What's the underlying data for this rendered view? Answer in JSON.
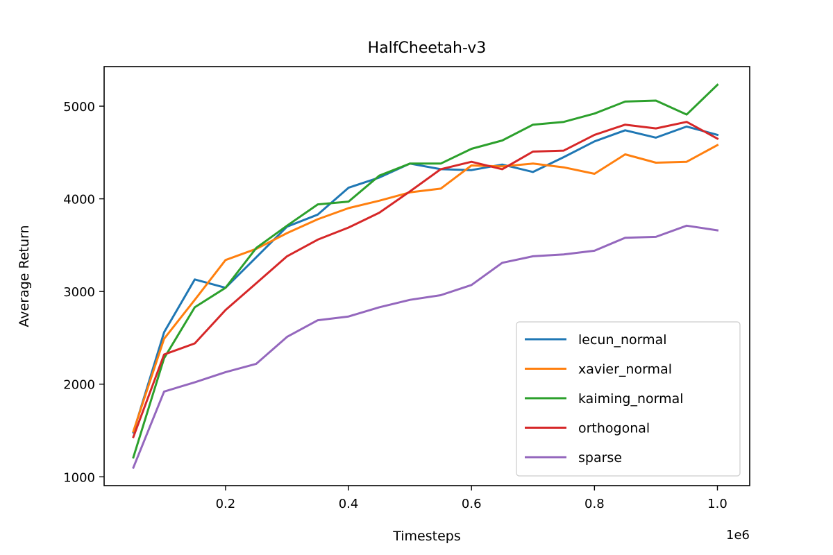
{
  "chart_data": {
    "type": "line",
    "title": "HalfCheetah-v3",
    "xlabel": "Timesteps",
    "ylabel": "Average Return",
    "x_offset_label": "1e6",
    "xlim": [
      0.0025,
      1.0525
    ],
    "ylim": [
      905,
      5427
    ],
    "xticks": [
      0.2,
      0.4,
      0.6,
      0.8,
      1.0
    ],
    "xtick_labels": [
      "0.2",
      "0.4",
      "0.6",
      "0.8",
      "1.0"
    ],
    "yticks": [
      1000,
      2000,
      3000,
      4000,
      5000
    ],
    "ytick_labels": [
      "1000",
      "2000",
      "3000",
      "4000",
      "5000"
    ],
    "grid": false,
    "legend_position": "lower-right",
    "x": [
      0.05,
      0.1,
      0.15,
      0.2,
      0.25,
      0.3,
      0.35,
      0.4,
      0.45,
      0.5,
      0.55,
      0.6,
      0.65,
      0.7,
      0.75,
      0.8,
      0.85,
      0.9,
      0.95,
      1.0
    ],
    "series": [
      {
        "name": "lecun_normal",
        "color": "#1f77b4",
        "values": [
          1480,
          2560,
          3130,
          3040,
          3370,
          3700,
          3830,
          4120,
          4230,
          4380,
          4320,
          4310,
          4370,
          4290,
          4450,
          4620,
          4740,
          4660,
          4780,
          4690
        ]
      },
      {
        "name": "xavier_normal",
        "color": "#ff7f0e",
        "values": [
          1490,
          2490,
          2910,
          3340,
          3460,
          3630,
          3780,
          3900,
          3980,
          4070,
          4110,
          4360,
          4350,
          4380,
          4340,
          4270,
          4480,
          4390,
          4400,
          4580
        ]
      },
      {
        "name": "kaiming_normal",
        "color": "#2ca02c",
        "values": [
          1210,
          2280,
          2830,
          3040,
          3470,
          3710,
          3940,
          3970,
          4250,
          4380,
          4380,
          4540,
          4630,
          4800,
          4830,
          4920,
          5050,
          5060,
          4910,
          5230
        ]
      },
      {
        "name": "orthogonal",
        "color": "#d62728",
        "values": [
          1430,
          2320,
          2440,
          2800,
          3090,
          3380,
          3560,
          3690,
          3850,
          4080,
          4320,
          4400,
          4320,
          4510,
          4520,
          4690,
          4800,
          4760,
          4830,
          4650
        ]
      },
      {
        "name": "sparse",
        "color": "#9467bd",
        "values": [
          1100,
          1920,
          2020,
          2130,
          2220,
          2510,
          2690,
          2730,
          2830,
          2910,
          2960,
          3070,
          3310,
          3380,
          3400,
          3440,
          3580,
          3590,
          3710,
          3660
        ]
      }
    ]
  }
}
